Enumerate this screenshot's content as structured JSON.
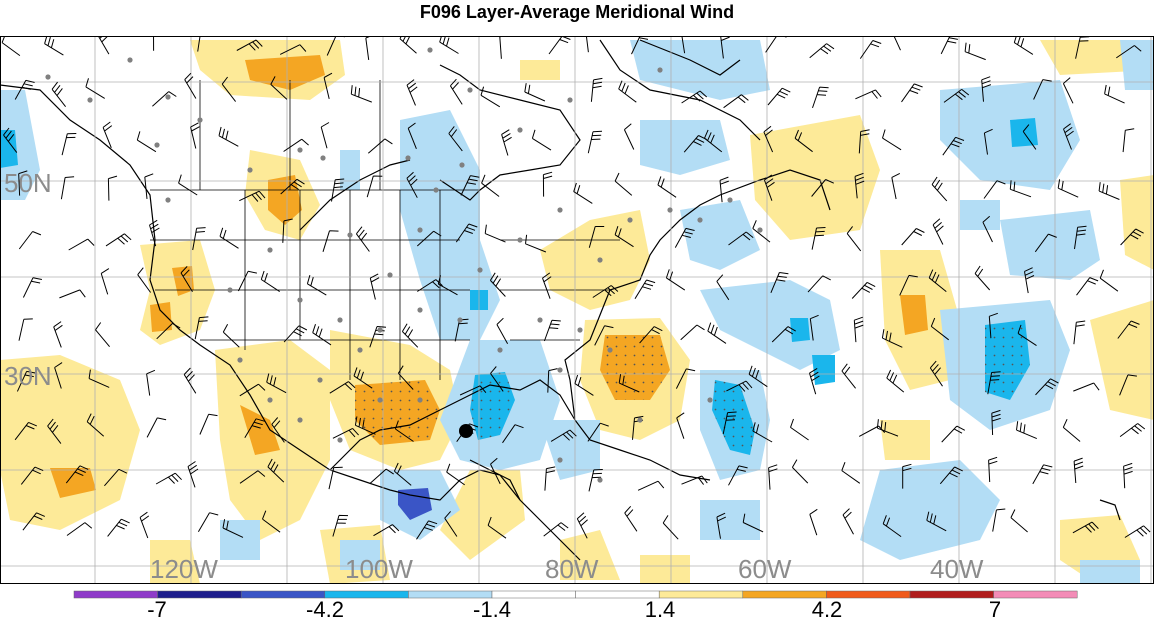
{
  "title": "F096 Layer-Average Meridional Wind",
  "longitude_labels": [
    "120W",
    "100W",
    "80W",
    "60W",
    "40W"
  ],
  "latitude_labels": [
    "50N",
    "30N"
  ],
  "colorbar": {
    "tick_labels": [
      "-7",
      "-4.2",
      "-1.4",
      "1.4",
      "4.2",
      "7"
    ],
    "colors": [
      "#8f3bc9",
      "#1e1e8c",
      "#3a55c6",
      "#1ab6ec",
      "#b3ddf5",
      "#ffffff",
      "#ffffff",
      "#fdea98",
      "#f4a623",
      "#f05a1a",
      "#b01c1c",
      "#f38cb7"
    ]
  },
  "colors": {
    "light_blue": "#b3ddf5",
    "blue": "#1ab6ec",
    "dark_blue": "#3a55c6",
    "light_yellow": "#fdea98",
    "orange": "#f4a623",
    "coastline": "#000000",
    "gridline": "#b0b0b0",
    "station_dot": "#808080"
  },
  "marker_icon": "black-circle-marker"
}
